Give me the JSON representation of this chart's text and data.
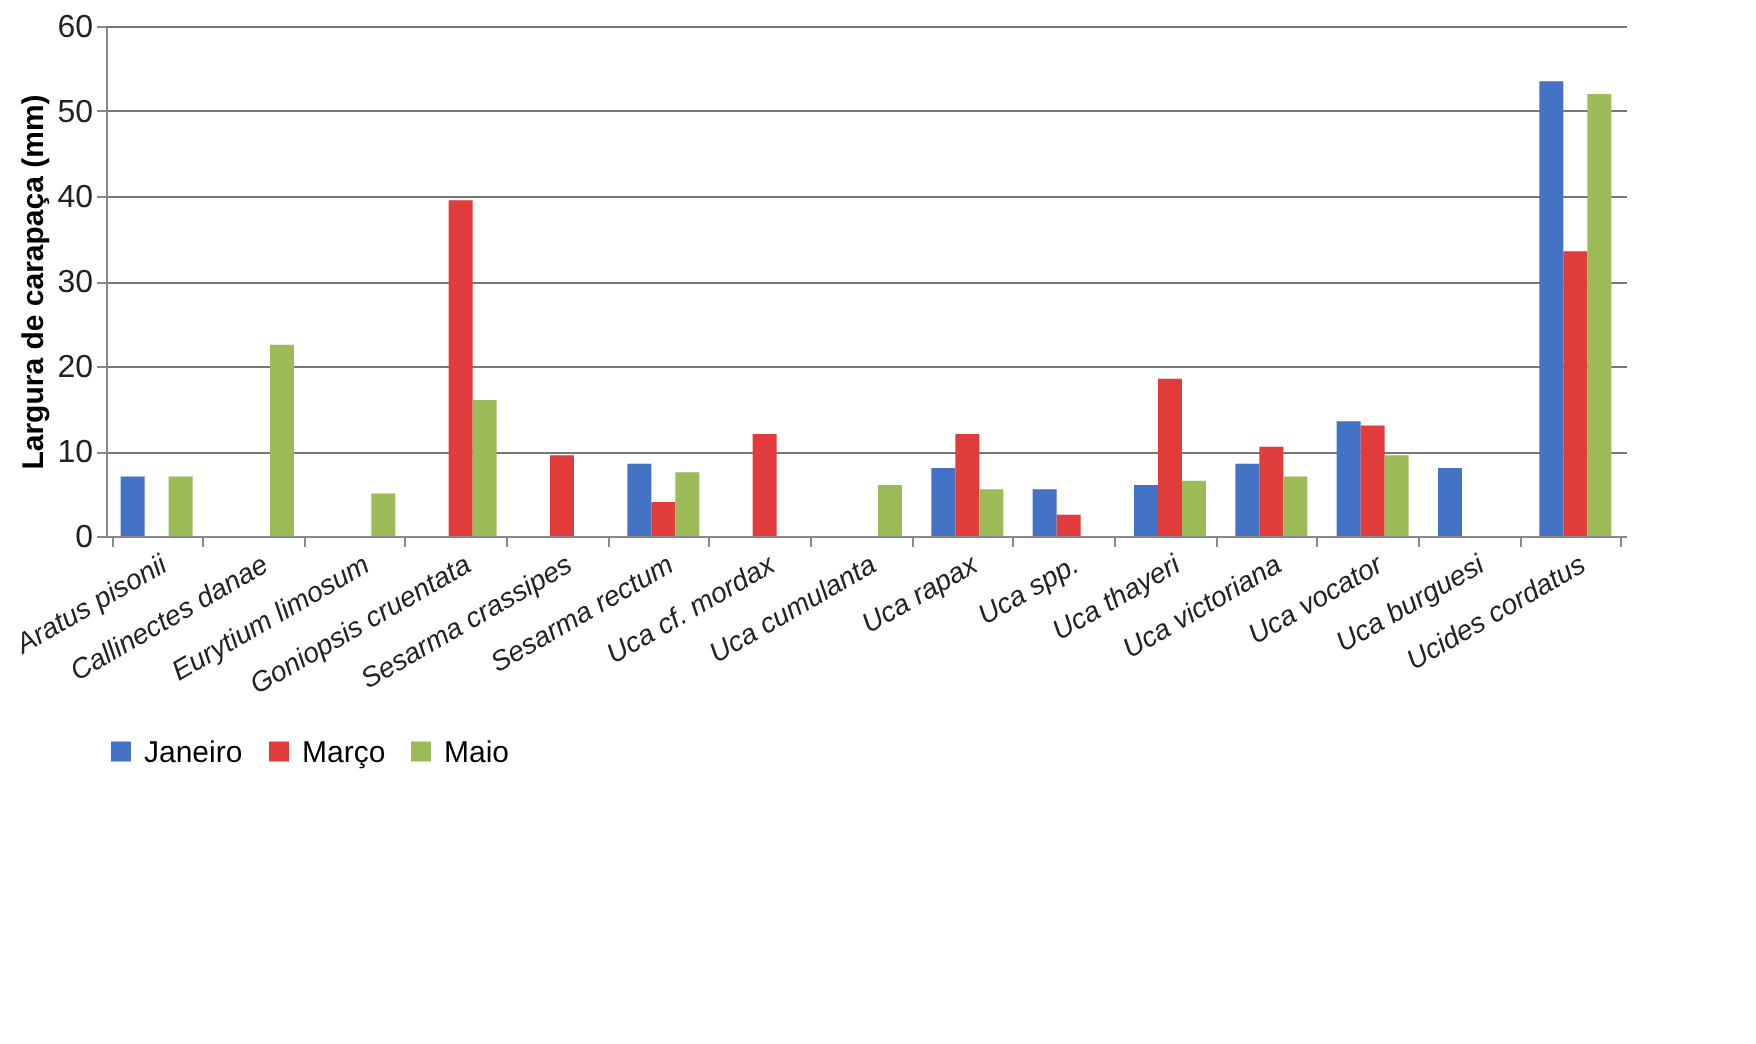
{
  "chart_data": {
    "type": "bar",
    "ylabel": "Largura de carapaça (mm)",
    "categories": [
      "Aratus pisonii",
      "Callinectes danae",
      "Eurytium limosum",
      "Goniopsis cruentata",
      "Sesarma crassipes",
      "Sesarma rectum",
      "Uca cf. mordax",
      "Uca cumulanta",
      "Uca rapax",
      "Uca spp.",
      "Uca thayeri",
      "Uca victoriana",
      "Uca vocator",
      "Uca burguesi",
      "Ucides cordatus"
    ],
    "series": [
      {
        "name": "Janeiro",
        "color": "#4472c4",
        "values": [
          7,
          null,
          null,
          null,
          null,
          8.5,
          null,
          null,
          8,
          5.5,
          6,
          8.5,
          13.5,
          8,
          53.5
        ]
      },
      {
        "name": "Março",
        "color": "#e03c3c",
        "values": [
          null,
          null,
          null,
          39.5,
          9.5,
          4,
          12,
          null,
          12,
          2.5,
          18.5,
          10.5,
          13,
          null,
          33.5
        ]
      },
      {
        "name": "Maio",
        "color": "#9bbb59",
        "values": [
          7,
          22.5,
          5,
          16,
          null,
          7.5,
          null,
          6,
          5.5,
          null,
          6.5,
          7,
          9.5,
          null,
          52
        ]
      }
    ],
    "ylim": [
      0,
      60
    ],
    "yticks": [
      0,
      10,
      20,
      30,
      40,
      50,
      60
    ],
    "grid": "y",
    "legend": "bottom"
  }
}
